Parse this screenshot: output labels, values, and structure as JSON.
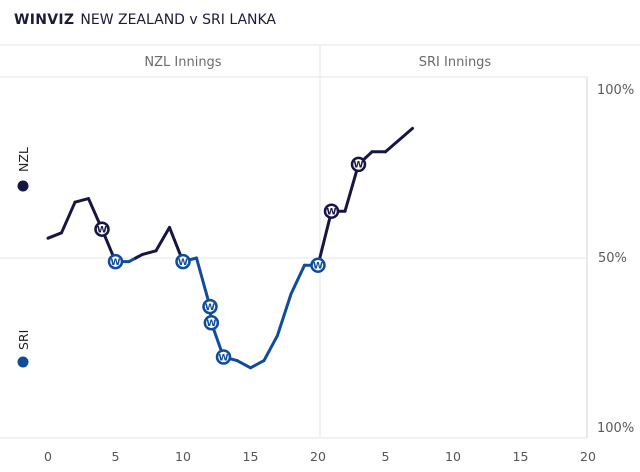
{
  "header": {
    "brand": "WINVIZ",
    "match": "NEW ZEALAND v SRI LANKA"
  },
  "colors": {
    "nzl": "#171641",
    "sri": "#0f4c99",
    "grid": "#e6e6e6",
    "axis": "#d6d6d6"
  },
  "chart_data": {
    "type": "line",
    "sections": [
      "NZL Innings",
      "SRI Innings"
    ],
    "teams": [
      {
        "name": "NZL",
        "color": "#171641"
      },
      {
        "name": "SRI",
        "color": "#0f4c99"
      }
    ],
    "y_tick_labels": [
      "100%",
      "50%",
      "100%"
    ],
    "x_tick_labels": [
      "0",
      "5",
      "10",
      "15",
      "20",
      "5",
      "10",
      "15",
      "20"
    ],
    "xlim": [
      -2,
      40
    ],
    "ylim": [
      -100,
      100
    ],
    "points": [
      [
        0,
        11
      ],
      [
        1,
        14
      ],
      [
        2,
        31
      ],
      [
        3,
        33
      ],
      [
        4,
        16
      ],
      [
        5,
        -2
      ],
      [
        6,
        -2
      ],
      [
        7,
        2
      ],
      [
        8,
        4
      ],
      [
        9,
        17
      ],
      [
        10,
        -2
      ],
      [
        11,
        0
      ],
      [
        12,
        -27
      ],
      [
        12.1,
        -36
      ],
      [
        13,
        -55
      ],
      [
        14,
        -57
      ],
      [
        15,
        -61
      ],
      [
        16,
        -57
      ],
      [
        17,
        -43
      ],
      [
        18,
        -20
      ],
      [
        19,
        -4
      ],
      [
        20,
        -4
      ],
      [
        21,
        26
      ],
      [
        22,
        26
      ],
      [
        23,
        52
      ],
      [
        24,
        59
      ],
      [
        25,
        59
      ],
      [
        27,
        72
      ]
    ],
    "wickets": [
      4,
      5,
      10,
      12,
      12.1,
      13,
      20,
      21,
      23
    ],
    "wicket_symbol": "W"
  }
}
